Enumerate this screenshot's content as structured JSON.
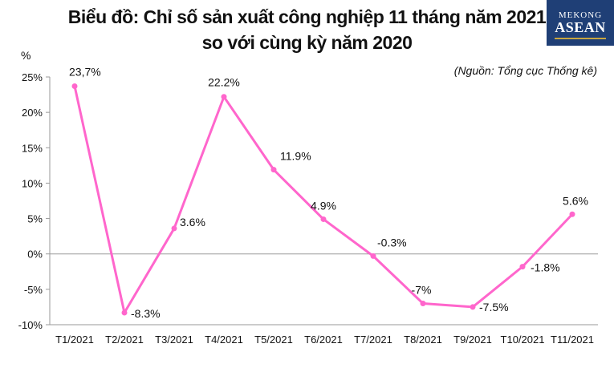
{
  "header": {
    "title_line1": "Biểu đồ: Chỉ số sản xuất công nghiệp 11 tháng năm 2021",
    "title_line2": "so với cùng kỳ năm 2020",
    "logo_top": "MEKONG",
    "logo_big": "ASEAN"
  },
  "source": "(Nguồn: Tổng cục Thống kê)",
  "colors": {
    "line": "#ff66cc",
    "axis": "#9a9a9a",
    "logo_bg": "#1f3f76"
  },
  "chart_data": {
    "type": "line",
    "ylabel": "%",
    "ylim": [
      -10,
      25
    ],
    "yticks": [
      25,
      20,
      15,
      10,
      5,
      0,
      -5,
      -10
    ],
    "ytick_labels": [
      "25%",
      "20%",
      "15%",
      "10%",
      "5%",
      "0%",
      "-5%",
      "-10%"
    ],
    "categories": [
      "T1/2021",
      "T2/2021",
      "T3/2021",
      "T4/2021",
      "T5/2021",
      "T6/2021",
      "T7/2021",
      "T8/2021",
      "T9/2021",
      "T10/2021",
      "T11/2021"
    ],
    "series": [
      {
        "values": [
          23.7,
          -8.3,
          3.6,
          22.2,
          11.9,
          4.9,
          -0.3,
          -7,
          -7.5,
          -1.8,
          5.6
        ],
        "labels": [
          "23,7%",
          "-8.3%",
          "3.6%",
          "22.2%",
          "11.9%",
          "4.9%",
          "-0.3%",
          "-7%",
          "-7.5%",
          "-1.8%",
          "5.6%"
        ]
      }
    ],
    "grid": false,
    "legend": "none"
  }
}
